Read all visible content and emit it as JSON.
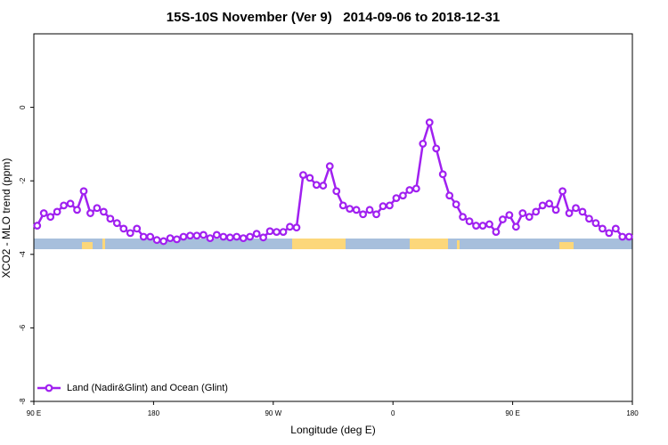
{
  "chart_data": {
    "type": "line",
    "title": "15S-10S November (Ver 9)   2014-09-06 to 2018-12-31",
    "xlabel": "Longitude (deg E)",
    "ylabel": "XCO2 - MLO trend (ppm)",
    "xlim": [
      90,
      540
    ],
    "xticks": [
      {
        "value": 90,
        "label": "90 E"
      },
      {
        "value": 180,
        "label": "180"
      },
      {
        "value": 270,
        "label": "90 W"
      },
      {
        "value": 360,
        "label": "0"
      },
      {
        "value": 450,
        "label": "90 E"
      },
      {
        "value": 540,
        "label": "180"
      }
    ],
    "ylim": [
      -8,
      2
    ],
    "yticks": [
      -8,
      -6,
      -4,
      -2,
      0
    ],
    "legend": "bottom-left",
    "x": [
      92.5,
      97.5,
      102.5,
      107.5,
      112.5,
      117.5,
      122.5,
      127.5,
      132.5,
      137.5,
      142.5,
      147.5,
      152.5,
      157.5,
      162.5,
      167.5,
      172.5,
      177.5,
      182.5,
      187.5,
      192.5,
      197.5,
      202.5,
      207.5,
      212.5,
      217.5,
      222.5,
      227.5,
      232.5,
      237.5,
      242.5,
      247.5,
      252.5,
      257.5,
      262.5,
      267.5,
      272.5,
      277.5,
      282.5,
      287.5,
      292.5,
      297.5,
      302.5,
      307.5,
      312.5,
      317.5,
      322.5,
      327.5,
      332.5,
      337.5,
      342.5,
      347.5,
      352.5,
      357.5,
      362.5,
      367.5,
      372.5,
      377.5,
      382.5,
      387.5,
      392.5,
      397.5,
      402.5,
      407.5,
      412.5,
      417.5,
      422.5,
      427.5,
      432.5,
      437.5,
      442.5,
      447.5,
      452.5,
      457.5,
      462.5,
      467.5,
      472.5,
      477.5,
      482.5,
      487.5,
      492.5,
      497.5,
      502.5,
      507.5,
      512.5,
      517.5,
      522.5,
      527.5,
      532.5,
      537.5
    ],
    "series": [
      {
        "name": "Land (Nadir&Glint) and Ocean (Glint)",
        "color": "#a020f0",
        "values": [
          -3.22,
          -2.88,
          -2.98,
          -2.84,
          -2.67,
          -2.62,
          -2.79,
          -2.28,
          -2.88,
          -2.74,
          -2.84,
          -3.03,
          -3.15,
          -3.3,
          -3.42,
          -3.3,
          -3.52,
          -3.52,
          -3.61,
          -3.64,
          -3.56,
          -3.59,
          -3.52,
          -3.49,
          -3.49,
          -3.47,
          -3.56,
          -3.47,
          -3.52,
          -3.54,
          -3.52,
          -3.56,
          -3.52,
          -3.44,
          -3.54,
          -3.37,
          -3.39,
          -3.39,
          -3.25,
          -3.27,
          -1.84,
          -1.92,
          -2.11,
          -2.13,
          -1.6,
          -2.28,
          -2.67,
          -2.76,
          -2.79,
          -2.91,
          -2.79,
          -2.91,
          -2.69,
          -2.67,
          -2.47,
          -2.4,
          -2.25,
          -2.21,
          -0.99,
          -0.41,
          -1.12,
          -1.82,
          -2.4,
          -2.64,
          -2.98,
          -3.1,
          -3.22,
          -3.22,
          -3.18,
          -3.39,
          -3.05,
          -2.93,
          -3.25,
          -2.88,
          -2.98,
          -2.84,
          -2.67,
          -2.62,
          -2.79,
          -2.28,
          -2.88,
          -2.74,
          -2.84,
          -3.03,
          -3.15,
          -3.3,
          -3.42,
          -3.3,
          -3.52,
          -3.52
        ]
      }
    ]
  }
}
